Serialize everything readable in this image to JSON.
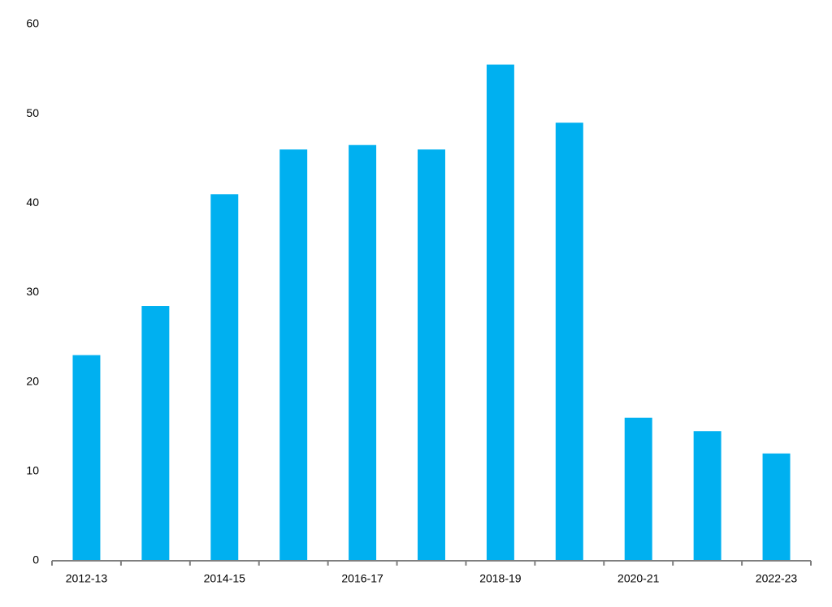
{
  "chart_data": {
    "type": "bar",
    "categories": [
      "2012-13",
      null,
      "2014-15",
      null,
      "2016-17",
      null,
      "2018-19",
      null,
      "2020-21",
      null,
      "2022-23"
    ],
    "values": [
      23,
      28.5,
      41,
      46,
      46.5,
      46,
      55.5,
      49,
      16,
      14.5,
      12
    ],
    "color": "#00b0f0",
    "ylim": [
      0,
      60
    ],
    "yticks": [
      0,
      10,
      20,
      30,
      40,
      50,
      60
    ],
    "grid": false
  }
}
